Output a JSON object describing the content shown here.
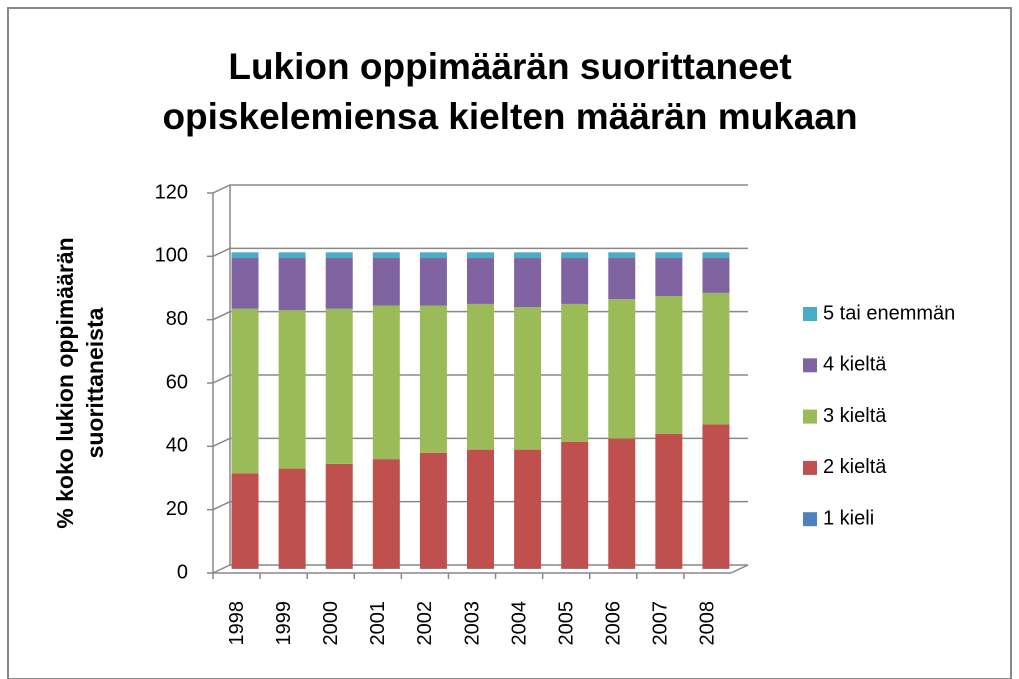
{
  "chart_data": {
    "type": "stacked_bar",
    "title": "Lukion oppimäärän suorittaneet opiskelemiensa kielten määrän mukaan",
    "y_label": "% koko lukion oppimäärän suorittaneista",
    "categories": [
      "1998",
      "1999",
      "2000",
      "2001",
      "2002",
      "2003",
      "2004",
      "2005",
      "2006",
      "2007",
      "2008"
    ],
    "series": [
      {
        "name": "1 kieli",
        "color": "#4f81bd",
        "values": [
          0.2,
          0.2,
          0.2,
          0.2,
          0.2,
          0.2,
          0.2,
          0.2,
          0.2,
          0.2,
          0.2
        ]
      },
      {
        "name": "2 kieltä",
        "color": "#c0504d",
        "values": [
          30,
          31.5,
          33,
          34.5,
          36.5,
          37.5,
          37.5,
          40,
          41,
          42.5,
          45.5
        ]
      },
      {
        "name": "3 kieltä",
        "color": "#9bbb59",
        "values": [
          52,
          50,
          49,
          48.5,
          46.5,
          46,
          45,
          43.5,
          44,
          43.5,
          41.5
        ]
      },
      {
        "name": "4 kieltä",
        "color": "#8064a2",
        "values": [
          16,
          16.5,
          16,
          15,
          15,
          14.5,
          15.5,
          14.5,
          13,
          12,
          11
        ]
      },
      {
        "name": "5 tai enemmän",
        "color": "#4bacc6",
        "values": [
          1.8,
          1.8,
          1.8,
          1.8,
          1.8,
          1.8,
          1.8,
          1.8,
          1.8,
          1.8,
          1.8
        ]
      }
    ],
    "ylim": [
      0,
      120
    ],
    "yticks": [
      0,
      20,
      40,
      60,
      80,
      100,
      120
    ],
    "grid": true,
    "legend": "right"
  }
}
